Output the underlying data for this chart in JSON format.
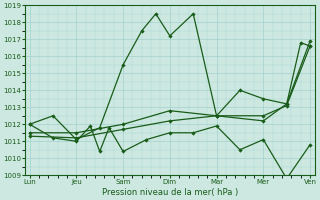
{
  "title": "Pression niveau de la mer( hPa )",
  "background_color": "#cce8e0",
  "grid_color": "#99cccc",
  "line_color": "#1a5c1a",
  "ylim": [
    1009,
    1019
  ],
  "yticks": [
    1009,
    1010,
    1011,
    1012,
    1013,
    1014,
    1015,
    1016,
    1017,
    1018,
    1019
  ],
  "x_labels": [
    "Lun",
    "Jeu",
    "Sam",
    "Dim",
    "Mar",
    "Mer",
    "Ven"
  ],
  "x_major_positions": [
    0,
    1,
    2,
    3,
    4,
    5,
    6
  ],
  "series": [
    {
      "x": [
        0.0,
        0.5,
        1.0,
        1.5,
        2.0,
        2.4,
        2.7,
        3.0,
        3.5,
        4.0,
        4.5,
        5.0,
        5.5,
        5.8,
        6.0
      ],
      "y": [
        1012.0,
        1012.5,
        1011.1,
        1011.8,
        1015.5,
        1017.5,
        1018.5,
        1017.2,
        1018.5,
        1012.5,
        1014.0,
        1013.5,
        1013.2,
        1016.8,
        1016.6
      ]
    },
    {
      "x": [
        0.0,
        0.5,
        1.0,
        1.3,
        1.5,
        1.7,
        2.0,
        2.5,
        3.0,
        3.5,
        4.0,
        4.5,
        5.0,
        5.5,
        6.0
      ],
      "y": [
        1012.0,
        1011.2,
        1011.0,
        1011.9,
        1010.4,
        1011.8,
        1010.4,
        1011.1,
        1011.5,
        1011.5,
        1011.9,
        1010.5,
        1011.1,
        1008.8,
        1010.8
      ]
    },
    {
      "x": [
        0.0,
        1.0,
        2.0,
        3.0,
        4.0,
        5.0,
        5.5,
        6.0
      ],
      "y": [
        1011.3,
        1011.2,
        1011.7,
        1012.2,
        1012.5,
        1012.2,
        1013.2,
        1016.9
      ]
    },
    {
      "x": [
        0.0,
        1.0,
        2.0,
        3.0,
        4.0,
        5.0,
        5.5,
        6.0
      ],
      "y": [
        1011.5,
        1011.5,
        1012.0,
        1012.8,
        1012.5,
        1012.5,
        1013.1,
        1016.6
      ]
    }
  ]
}
